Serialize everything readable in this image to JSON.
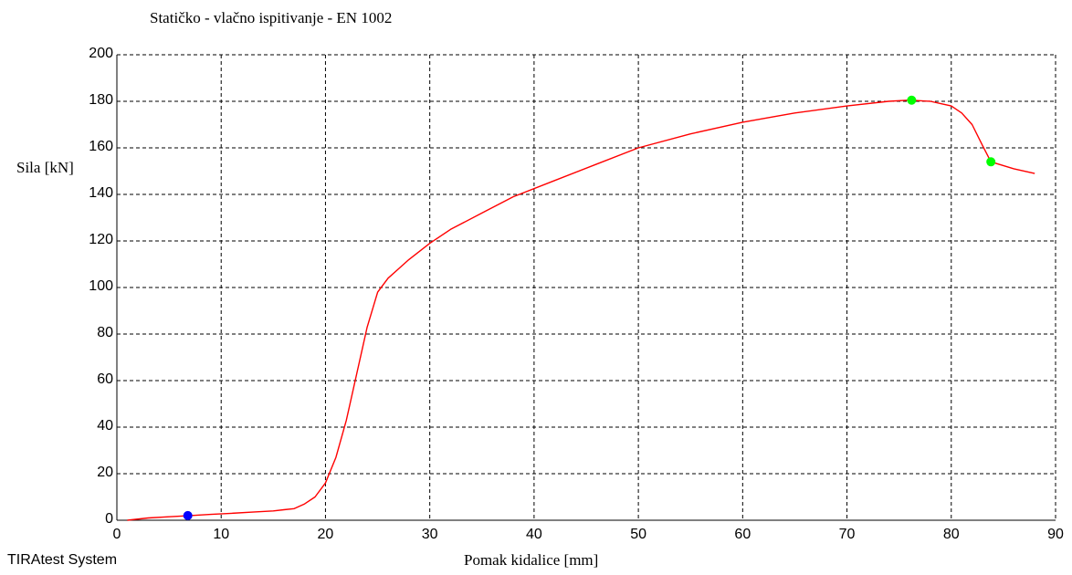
{
  "chart_data": {
    "type": "line",
    "title": "Statičko - vlačno ispitivanje - EN 1002",
    "xlabel": "Pomak kidalice [mm]",
    "ylabel": "Sila [kN]",
    "xlim": [
      0,
      90
    ],
    "ylim": [
      0,
      200
    ],
    "x_ticks": [
      0,
      10,
      20,
      30,
      40,
      50,
      60,
      70,
      80,
      90
    ],
    "y_ticks": [
      0,
      20,
      40,
      60,
      80,
      100,
      120,
      140,
      160,
      180,
      200
    ],
    "grid": true,
    "series": [
      {
        "color": "#ff0000",
        "x": [
          1,
          3,
          5,
          7,
          9,
          11,
          13,
          15,
          16,
          17,
          18,
          19,
          20,
          21,
          22,
          23,
          24,
          25,
          26,
          27,
          28,
          30,
          32,
          35,
          38,
          42,
          46,
          50,
          55,
          60,
          65,
          70,
          74,
          76,
          78,
          79,
          80,
          81,
          82,
          83,
          83.8,
          86,
          88
        ],
        "y": [
          0,
          1,
          1.5,
          2,
          2.5,
          3,
          3.5,
          4,
          4.5,
          5,
          7,
          10,
          16,
          27,
          43,
          63,
          83,
          98,
          104,
          108,
          112,
          119,
          125,
          132,
          139,
          146,
          153,
          160,
          166,
          171,
          175,
          178,
          180,
          180.5,
          180,
          179,
          178,
          175,
          170,
          161,
          154,
          151,
          149
        ]
      }
    ],
    "markers": [
      {
        "x": 6.8,
        "y": 2,
        "color": "#0000ff"
      },
      {
        "x": 76.2,
        "y": 180.5,
        "color": "#00ff00"
      },
      {
        "x": 83.8,
        "y": 154,
        "color": "#00ff00"
      }
    ]
  },
  "footer": "TIRAtest System"
}
